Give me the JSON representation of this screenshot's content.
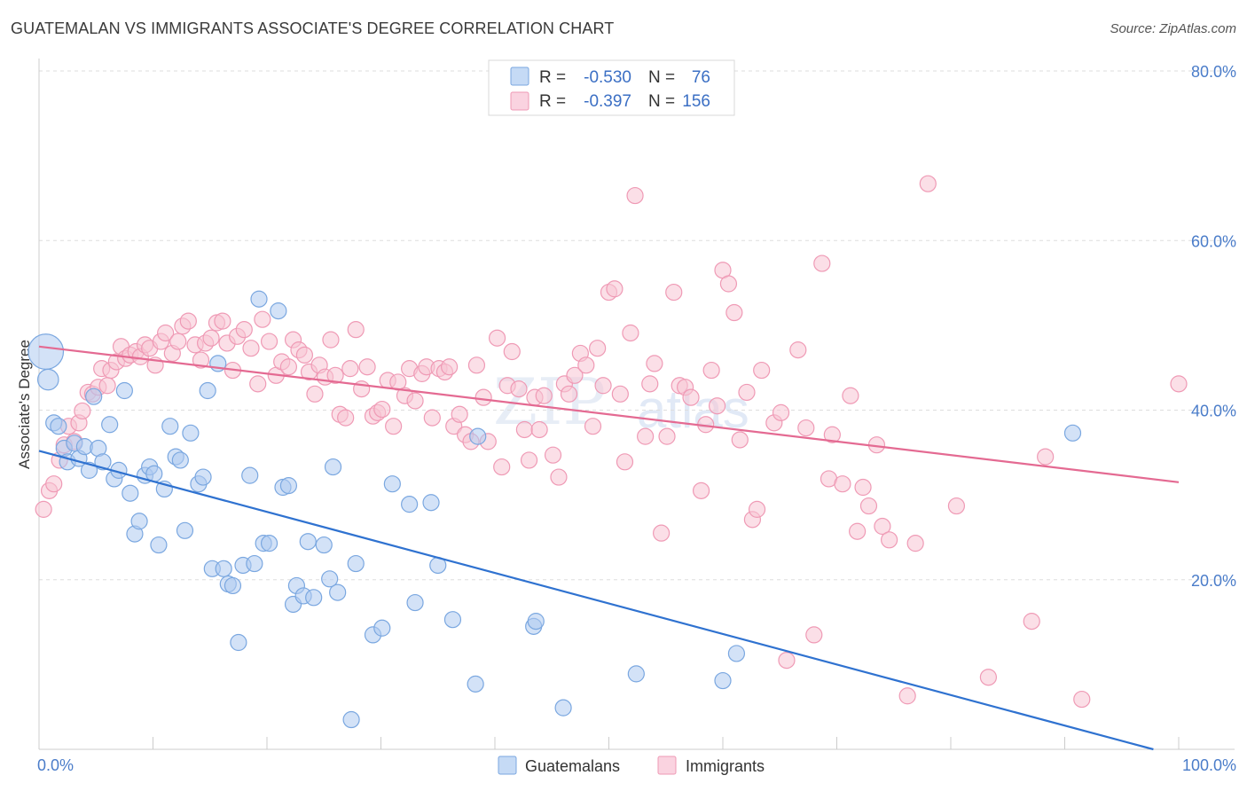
{
  "header": {
    "title": "GUATEMALAN VS IMMIGRANTS ASSOCIATE'S DEGREE CORRELATION CHART",
    "source": "Source: ZipAtlas.com"
  },
  "watermark": {
    "zip": "ZIP",
    "atlas": "atlas"
  },
  "legend": {
    "rows": [
      {
        "r_label": "R =",
        "r_value": "-0.530",
        "n_label": "N =",
        "n_value": "76",
        "color": "#7aa7e0"
      },
      {
        "r_label": "R =",
        "r_value": "-0.397",
        "n_label": "N =",
        "n_value": "156",
        "color": "#f09ab5"
      }
    ],
    "bottom": [
      "Guatemalans",
      "Immigrants"
    ]
  },
  "colors": {
    "blue_fill": "#aecbf0",
    "blue_stroke": "#7aa7e0",
    "blue_line": "#2f72d0",
    "pink_fill": "#f7c4d4",
    "pink_stroke": "#ef9ab5",
    "pink_line": "#e46a92",
    "grid": "#dddddd",
    "axis_text": "#4a7cc9"
  },
  "chart_data": {
    "type": "scatter",
    "title": "GUATEMALAN VS IMMIGRANTS ASSOCIATE'S DEGREE CORRELATION CHART",
    "xlabel": "",
    "ylabel": "Associate's Degree",
    "xlim": [
      0,
      100
    ],
    "ylim": [
      0,
      80
    ],
    "x_tick_labels": [
      "0.0%",
      "100.0%"
    ],
    "y_ticks": [
      20,
      40,
      60,
      80
    ],
    "y_tick_labels": [
      "20.0%",
      "40.0%",
      "60.0%",
      "80.0%"
    ],
    "grid": true,
    "legend_position": "top-center",
    "series": [
      {
        "name": "Guatemalans",
        "r": -0.53,
        "n": 76,
        "trend": {
          "x": [
            0,
            100
          ],
          "y": [
            35.2,
            -0.8
          ]
        },
        "points": [
          {
            "x": 0.6,
            "y": 46.9,
            "s": 2.2
          },
          {
            "x": 0.8,
            "y": 43.6,
            "s": 1.3
          },
          {
            "x": 1.3,
            "y": 38.5
          },
          {
            "x": 1.7,
            "y": 38.1
          },
          {
            "x": 2.2,
            "y": 35.5
          },
          {
            "x": 2.5,
            "y": 33.9
          },
          {
            "x": 3.1,
            "y": 36.1
          },
          {
            "x": 3.5,
            "y": 34.3
          },
          {
            "x": 4.0,
            "y": 35.7
          },
          {
            "x": 4.4,
            "y": 32.9
          },
          {
            "x": 4.8,
            "y": 41.6
          },
          {
            "x": 5.2,
            "y": 35.5
          },
          {
            "x": 5.6,
            "y": 33.9
          },
          {
            "x": 6.2,
            "y": 38.3
          },
          {
            "x": 6.6,
            "y": 31.9
          },
          {
            "x": 7.0,
            "y": 32.9
          },
          {
            "x": 7.5,
            "y": 42.3
          },
          {
            "x": 8.0,
            "y": 30.2
          },
          {
            "x": 8.4,
            "y": 25.4
          },
          {
            "x": 8.8,
            "y": 26.9
          },
          {
            "x": 9.3,
            "y": 32.3
          },
          {
            "x": 9.7,
            "y": 33.3
          },
          {
            "x": 10.1,
            "y": 32.5
          },
          {
            "x": 10.5,
            "y": 24.1
          },
          {
            "x": 11.0,
            "y": 30.7
          },
          {
            "x": 11.5,
            "y": 38.1
          },
          {
            "x": 12.0,
            "y": 34.5
          },
          {
            "x": 12.4,
            "y": 34.1
          },
          {
            "x": 12.8,
            "y": 25.8
          },
          {
            "x": 13.3,
            "y": 37.3
          },
          {
            "x": 14.0,
            "y": 31.3
          },
          {
            "x": 14.4,
            "y": 32.1
          },
          {
            "x": 14.8,
            "y": 42.3
          },
          {
            "x": 15.2,
            "y": 21.3
          },
          {
            "x": 15.7,
            "y": 45.5
          },
          {
            "x": 16.2,
            "y": 21.3
          },
          {
            "x": 16.6,
            "y": 19.5
          },
          {
            "x": 17.0,
            "y": 19.3
          },
          {
            "x": 17.5,
            "y": 12.6
          },
          {
            "x": 17.9,
            "y": 21.7
          },
          {
            "x": 18.5,
            "y": 32.3
          },
          {
            "x": 18.9,
            "y": 21.9
          },
          {
            "x": 19.3,
            "y": 53.1
          },
          {
            "x": 19.7,
            "y": 24.3
          },
          {
            "x": 20.2,
            "y": 24.3
          },
          {
            "x": 21.0,
            "y": 51.7
          },
          {
            "x": 21.4,
            "y": 30.9
          },
          {
            "x": 21.9,
            "y": 31.1
          },
          {
            "x": 22.3,
            "y": 17.1
          },
          {
            "x": 22.6,
            "y": 19.3
          },
          {
            "x": 23.2,
            "y": 18.1
          },
          {
            "x": 23.6,
            "y": 24.5
          },
          {
            "x": 24.1,
            "y": 17.9
          },
          {
            "x": 25.0,
            "y": 24.1
          },
          {
            "x": 25.5,
            "y": 20.1
          },
          {
            "x": 25.8,
            "y": 33.3
          },
          {
            "x": 26.2,
            "y": 18.5
          },
          {
            "x": 27.4,
            "y": 3.5
          },
          {
            "x": 27.8,
            "y": 21.9
          },
          {
            "x": 29.3,
            "y": 13.5
          },
          {
            "x": 30.1,
            "y": 14.3
          },
          {
            "x": 31.0,
            "y": 31.3
          },
          {
            "x": 32.5,
            "y": 28.9
          },
          {
            "x": 33.0,
            "y": 17.3
          },
          {
            "x": 34.4,
            "y": 29.1
          },
          {
            "x": 35.0,
            "y": 21.7
          },
          {
            "x": 36.3,
            "y": 15.3
          },
          {
            "x": 38.3,
            "y": 7.7
          },
          {
            "x": 38.5,
            "y": 36.9
          },
          {
            "x": 43.4,
            "y": 14.5
          },
          {
            "x": 43.6,
            "y": 15.1
          },
          {
            "x": 46.0,
            "y": 4.9
          },
          {
            "x": 52.4,
            "y": 8.9
          },
          {
            "x": 60.0,
            "y": 8.1
          },
          {
            "x": 61.2,
            "y": 11.3
          },
          {
            "x": 90.7,
            "y": 37.3
          }
        ]
      },
      {
        "name": "Immigrants",
        "r": -0.397,
        "n": 156,
        "trend": {
          "x": [
            0,
            100
          ],
          "y": [
            47.5,
            31.5
          ]
        },
        "points": [
          {
            "x": 0.4,
            "y": 28.3
          },
          {
            "x": 0.9,
            "y": 30.5
          },
          {
            "x": 1.3,
            "y": 31.3
          },
          {
            "x": 1.8,
            "y": 34.1
          },
          {
            "x": 2.2,
            "y": 35.9
          },
          {
            "x": 2.6,
            "y": 38.1
          },
          {
            "x": 3.1,
            "y": 36.3
          },
          {
            "x": 3.5,
            "y": 38.5
          },
          {
            "x": 3.8,
            "y": 39.9
          },
          {
            "x": 4.3,
            "y": 42.1
          },
          {
            "x": 4.7,
            "y": 41.9
          },
          {
            "x": 5.2,
            "y": 42.7
          },
          {
            "x": 5.5,
            "y": 44.9
          },
          {
            "x": 6.0,
            "y": 42.9
          },
          {
            "x": 6.3,
            "y": 44.7
          },
          {
            "x": 6.8,
            "y": 45.7
          },
          {
            "x": 7.2,
            "y": 47.5
          },
          {
            "x": 7.6,
            "y": 46.1
          },
          {
            "x": 8.0,
            "y": 46.5
          },
          {
            "x": 8.5,
            "y": 46.9
          },
          {
            "x": 8.9,
            "y": 46.3
          },
          {
            "x": 9.3,
            "y": 47.7
          },
          {
            "x": 9.7,
            "y": 47.3
          },
          {
            "x": 10.2,
            "y": 45.3
          },
          {
            "x": 10.7,
            "y": 48.1
          },
          {
            "x": 11.1,
            "y": 49.1
          },
          {
            "x": 11.7,
            "y": 46.7
          },
          {
            "x": 12.2,
            "y": 48.1
          },
          {
            "x": 12.6,
            "y": 49.9
          },
          {
            "x": 13.1,
            "y": 50.5
          },
          {
            "x": 13.7,
            "y": 47.7
          },
          {
            "x": 14.2,
            "y": 45.9
          },
          {
            "x": 14.6,
            "y": 47.9
          },
          {
            "x": 15.1,
            "y": 48.5
          },
          {
            "x": 15.6,
            "y": 50.3
          },
          {
            "x": 16.1,
            "y": 50.5
          },
          {
            "x": 16.5,
            "y": 47.9
          },
          {
            "x": 17.0,
            "y": 44.7
          },
          {
            "x": 17.4,
            "y": 48.7
          },
          {
            "x": 18.0,
            "y": 49.5
          },
          {
            "x": 18.6,
            "y": 47.3
          },
          {
            "x": 19.2,
            "y": 43.1
          },
          {
            "x": 19.6,
            "y": 50.7
          },
          {
            "x": 20.2,
            "y": 48.1
          },
          {
            "x": 20.8,
            "y": 44.1
          },
          {
            "x": 21.3,
            "y": 45.7
          },
          {
            "x": 21.9,
            "y": 45.1
          },
          {
            "x": 22.3,
            "y": 48.3
          },
          {
            "x": 22.8,
            "y": 47.1
          },
          {
            "x": 23.3,
            "y": 46.5
          },
          {
            "x": 23.7,
            "y": 44.5
          },
          {
            "x": 24.2,
            "y": 41.9
          },
          {
            "x": 24.6,
            "y": 45.3
          },
          {
            "x": 25.1,
            "y": 43.9
          },
          {
            "x": 25.6,
            "y": 48.3
          },
          {
            "x": 26.0,
            "y": 44.1
          },
          {
            "x": 26.4,
            "y": 39.5
          },
          {
            "x": 26.9,
            "y": 39.1
          },
          {
            "x": 27.3,
            "y": 44.9
          },
          {
            "x": 27.8,
            "y": 49.5
          },
          {
            "x": 28.3,
            "y": 42.5
          },
          {
            "x": 28.8,
            "y": 45.1
          },
          {
            "x": 29.3,
            "y": 39.3
          },
          {
            "x": 29.7,
            "y": 39.7
          },
          {
            "x": 30.1,
            "y": 40.1
          },
          {
            "x": 30.6,
            "y": 43.5
          },
          {
            "x": 31.1,
            "y": 38.1
          },
          {
            "x": 31.5,
            "y": 43.3
          },
          {
            "x": 32.1,
            "y": 41.7
          },
          {
            "x": 32.5,
            "y": 44.9
          },
          {
            "x": 33.0,
            "y": 41.1
          },
          {
            "x": 33.6,
            "y": 44.3
          },
          {
            "x": 34.0,
            "y": 45.1
          },
          {
            "x": 34.5,
            "y": 39.1
          },
          {
            "x": 35.1,
            "y": 44.9
          },
          {
            "x": 35.6,
            "y": 44.5
          },
          {
            "x": 36.0,
            "y": 45.1
          },
          {
            "x": 36.4,
            "y": 38.1
          },
          {
            "x": 36.9,
            "y": 39.5
          },
          {
            "x": 37.4,
            "y": 37.1
          },
          {
            "x": 37.9,
            "y": 36.3
          },
          {
            "x": 38.4,
            "y": 45.3
          },
          {
            "x": 39.0,
            "y": 41.5
          },
          {
            "x": 39.4,
            "y": 36.3
          },
          {
            "x": 40.2,
            "y": 48.5
          },
          {
            "x": 40.6,
            "y": 33.3
          },
          {
            "x": 41.1,
            "y": 42.9
          },
          {
            "x": 41.5,
            "y": 46.9
          },
          {
            "x": 42.1,
            "y": 42.5
          },
          {
            "x": 42.6,
            "y": 37.7
          },
          {
            "x": 43.0,
            "y": 34.1
          },
          {
            "x": 43.5,
            "y": 41.5
          },
          {
            "x": 43.9,
            "y": 37.7
          },
          {
            "x": 44.3,
            "y": 41.7
          },
          {
            "x": 45.1,
            "y": 34.7
          },
          {
            "x": 45.6,
            "y": 32.1
          },
          {
            "x": 46.1,
            "y": 43.1
          },
          {
            "x": 46.5,
            "y": 41.9
          },
          {
            "x": 47.0,
            "y": 44.1
          },
          {
            "x": 47.5,
            "y": 46.7
          },
          {
            "x": 48.0,
            "y": 45.3
          },
          {
            "x": 48.6,
            "y": 38.1
          },
          {
            "x": 49.0,
            "y": 47.3
          },
          {
            "x": 49.5,
            "y": 42.9
          },
          {
            "x": 50.0,
            "y": 53.9
          },
          {
            "x": 50.5,
            "y": 54.3
          },
          {
            "x": 51.0,
            "y": 41.9
          },
          {
            "x": 51.4,
            "y": 33.9
          },
          {
            "x": 51.9,
            "y": 49.1
          },
          {
            "x": 52.3,
            "y": 65.3
          },
          {
            "x": 53.2,
            "y": 36.9
          },
          {
            "x": 53.6,
            "y": 43.1
          },
          {
            "x": 54.0,
            "y": 45.5
          },
          {
            "x": 54.6,
            "y": 25.5
          },
          {
            "x": 55.1,
            "y": 36.9
          },
          {
            "x": 55.7,
            "y": 53.9
          },
          {
            "x": 56.2,
            "y": 42.9
          },
          {
            "x": 56.7,
            "y": 42.7
          },
          {
            "x": 57.2,
            "y": 41.5
          },
          {
            "x": 58.1,
            "y": 30.5
          },
          {
            "x": 58.5,
            "y": 38.3
          },
          {
            "x": 59.0,
            "y": 44.7
          },
          {
            "x": 59.5,
            "y": 40.5
          },
          {
            "x": 60.0,
            "y": 56.5
          },
          {
            "x": 60.5,
            "y": 54.9
          },
          {
            "x": 61.0,
            "y": 51.5
          },
          {
            "x": 61.5,
            "y": 36.5
          },
          {
            "x": 62.1,
            "y": 42.1
          },
          {
            "x": 62.6,
            "y": 27.1
          },
          {
            "x": 63.0,
            "y": 28.3
          },
          {
            "x": 63.4,
            "y": 44.7
          },
          {
            "x": 64.5,
            "y": 38.5
          },
          {
            "x": 65.1,
            "y": 39.7
          },
          {
            "x": 65.6,
            "y": 10.5
          },
          {
            "x": 66.6,
            "y": 47.1
          },
          {
            "x": 67.3,
            "y": 37.9
          },
          {
            "x": 68.0,
            "y": 13.5
          },
          {
            "x": 68.7,
            "y": 57.3
          },
          {
            "x": 69.3,
            "y": 31.9
          },
          {
            "x": 69.6,
            "y": 37.1
          },
          {
            "x": 70.5,
            "y": 31.3
          },
          {
            "x": 71.2,
            "y": 41.7
          },
          {
            "x": 71.8,
            "y": 25.7
          },
          {
            "x": 72.3,
            "y": 30.9
          },
          {
            "x": 72.8,
            "y": 28.7
          },
          {
            "x": 73.5,
            "y": 35.9
          },
          {
            "x": 74.0,
            "y": 26.3
          },
          {
            "x": 74.6,
            "y": 24.7
          },
          {
            "x": 76.2,
            "y": 6.3
          },
          {
            "x": 76.9,
            "y": 24.3
          },
          {
            "x": 78.0,
            "y": 66.7
          },
          {
            "x": 80.5,
            "y": 28.7
          },
          {
            "x": 83.3,
            "y": 8.5
          },
          {
            "x": 87.1,
            "y": 15.1
          },
          {
            "x": 88.3,
            "y": 34.5
          },
          {
            "x": 91.5,
            "y": 5.9
          },
          {
            "x": 100.0,
            "y": 43.1
          }
        ]
      }
    ]
  }
}
